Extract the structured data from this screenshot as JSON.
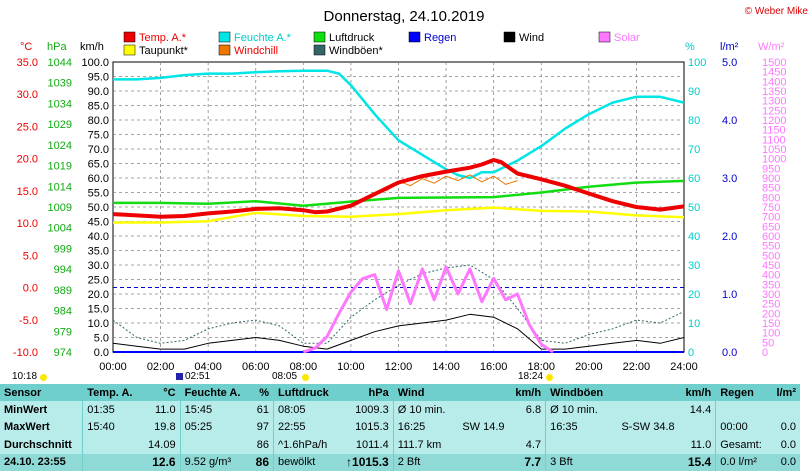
{
  "title": "Donnerstag, 24.10.2019",
  "copyright": "© Weber Mike",
  "legend": [
    {
      "label": "Temp. A.*",
      "color": "#ee0000"
    },
    {
      "label": "Feuchte A.*",
      "color": "#00e5e5"
    },
    {
      "label": "Luftdruck",
      "color": "#11dd11"
    },
    {
      "label": "Regen",
      "color": "#0000ff"
    },
    {
      "label": "Wind",
      "color": "#000000"
    },
    {
      "label": "Solar",
      "color": "#ff77ff"
    },
    {
      "label": "Taupunkt*",
      "color": "#ffff00"
    },
    {
      "label": "Windchill",
      "color": "#ee7700"
    },
    {
      "label": "Windböen*",
      "color": "#336666"
    }
  ],
  "axis_units": {
    "temp": "°C",
    "pressure": "hPa",
    "wind": "km/h",
    "humidity": "%",
    "rain": "l/m²",
    "solar": "W/m²"
  },
  "sun": {
    "sunrise_label": "08:05",
    "sunset_label": "18:24",
    "moonrise": "02:51",
    "moonset": "10:18"
  },
  "chart_data": {
    "type": "line",
    "title": "Donnerstag, 24.10.2019",
    "x_label": "",
    "x_ticks": [
      "00:00",
      "02:00",
      "04:00",
      "06:00",
      "08:00",
      "10:00",
      "12:00",
      "14:00",
      "16:00",
      "18:00",
      "20:00",
      "22:00",
      "24:00"
    ],
    "xlim": [
      0,
      24
    ],
    "axes": {
      "temp_c": {
        "ticks": [
          "35.0",
          "30.0",
          "25.0",
          "20.0",
          "15.0",
          "10.0",
          "5.0",
          "0.0",
          "-5.0",
          "-10.0"
        ],
        "range": [
          -10,
          35
        ]
      },
      "pressure_hpa": {
        "ticks": [
          "1044",
          "1039",
          "1034",
          "1029",
          "1024",
          "1019",
          "1014",
          "1009",
          "1004",
          "999",
          "994",
          "989",
          "984",
          "979",
          "974"
        ],
        "range": [
          974,
          1044
        ]
      },
      "wind_kmh": {
        "ticks": [
          "100.0",
          "95.0",
          "90.0",
          "85.0",
          "80.0",
          "75.0",
          "70.0",
          "65.0",
          "60.0",
          "55.0",
          "50.0",
          "45.0",
          "40.0",
          "35.0",
          "30.0",
          "25.0",
          "20.0",
          "15.0",
          "10.0",
          "5.0",
          "0.0"
        ],
        "range": [
          0,
          100
        ]
      },
      "humidity_pct": {
        "ticks": [
          "100",
          "90",
          "80",
          "70",
          "60",
          "50",
          "40",
          "30",
          "20",
          "10",
          "0"
        ],
        "range": [
          0,
          100
        ]
      },
      "rain_lm2": {
        "ticks": [
          "5.0",
          "4.0",
          "3.0",
          "2.0",
          "1.0",
          "0.0"
        ],
        "range": [
          0,
          5
        ]
      },
      "solar_wm2": {
        "ticks": [
          "1500",
          "1450",
          "1400",
          "1350",
          "1300",
          "1250",
          "1200",
          "1150",
          "1100",
          "1050",
          "1000",
          "950",
          "900",
          "850",
          "800",
          "750",
          "700",
          "650",
          "600",
          "550",
          "500",
          "450",
          "400",
          "350",
          "300",
          "250",
          "200",
          "150",
          "100",
          "50",
          "0"
        ],
        "range": [
          0,
          1500
        ]
      }
    },
    "series": [
      {
        "name": "Temp. A.*",
        "axis": "temp_c",
        "color": "#ee0000",
        "x": [
          0,
          1,
          2,
          3,
          4,
          5,
          6,
          7,
          8,
          8.5,
          9,
          10,
          11,
          12,
          13,
          14,
          15,
          15.5,
          16,
          16.3,
          17,
          18,
          19,
          20,
          21,
          22,
          23,
          24
        ],
        "y": [
          11.4,
          11.2,
          11.0,
          11.1,
          11.5,
          11.8,
          12.2,
          12.3,
          12.0,
          11.7,
          11.8,
          12.7,
          14.5,
          16.3,
          17.3,
          18.0,
          18.6,
          19.1,
          19.8,
          19.5,
          17.7,
          16.8,
          15.8,
          14.6,
          13.4,
          12.5,
          12.1,
          12.6
        ]
      },
      {
        "name": "Feuchte A.*",
        "axis": "humidity_pct",
        "color": "#00e5e5",
        "x": [
          0,
          1,
          2,
          3,
          4,
          5,
          6,
          7,
          8,
          9,
          9.5,
          10,
          11,
          12,
          13,
          14,
          14.5,
          15,
          15.5,
          16,
          17,
          18,
          19,
          20,
          21,
          22,
          23,
          24
        ],
        "y": [
          94,
          94,
          94.5,
          95.5,
          96,
          96,
          96.5,
          96.8,
          97,
          97,
          96,
          92,
          82,
          73,
          68,
          63,
          61,
          60,
          62,
          62,
          66,
          71,
          77,
          82,
          86,
          88,
          88,
          86
        ]
      },
      {
        "name": "Luftdruck",
        "axis": "pressure_hpa",
        "color": "#11dd11",
        "x": [
          0,
          2,
          4,
          6,
          8,
          10,
          12,
          14,
          16,
          18,
          20,
          22,
          24
        ],
        "y": [
          1010.0,
          1010.0,
          1009.8,
          1010.4,
          1009.3,
          1010.3,
          1011.2,
          1011.3,
          1011.4,
          1012.5,
          1013.9,
          1014.9,
          1015.3
        ]
      },
      {
        "name": "Taupunkt*",
        "axis": "temp_c",
        "color": "#ffff00",
        "x": [
          0,
          2,
          4,
          6,
          8,
          10,
          12,
          14,
          16,
          18,
          20,
          22,
          24
        ],
        "y": [
          10.1,
          10.1,
          10.3,
          11.6,
          11.1,
          11.0,
          11.4,
          12.0,
          12.4,
          11.9,
          11.8,
          11.2,
          10.9
        ]
      },
      {
        "name": "Windchill",
        "axis": "temp_c",
        "color": "#ee7700",
        "x": [
          11.5,
          12,
          12.5,
          13,
          13.5,
          14,
          14.5,
          15,
          15.5,
          16,
          16.5,
          17
        ],
        "y": [
          15.0,
          16.5,
          15.8,
          16.9,
          16.2,
          17.3,
          16.6,
          17.5,
          16.4,
          17.3,
          16.0,
          16.6
        ]
      },
      {
        "name": "Wind",
        "axis": "wind_kmh",
        "color": "#000000",
        "x": [
          0,
          1,
          2,
          3,
          4,
          5,
          6,
          7,
          8,
          9,
          10,
          11,
          12,
          13,
          14,
          15,
          16,
          17,
          18,
          19,
          20,
          21,
          22,
          23,
          24
        ],
        "y": [
          3,
          2,
          1,
          1,
          3,
          4,
          5,
          4,
          2,
          1,
          4,
          7,
          9,
          10,
          11,
          13,
          12,
          8,
          1,
          1,
          2,
          3,
          4,
          3,
          5
        ]
      },
      {
        "name": "Windböen*",
        "axis": "wind_kmh",
        "color": "#336666",
        "x": [
          0,
          1,
          2,
          3,
          4,
          5,
          6,
          7,
          8,
          9,
          10,
          11,
          12,
          13,
          14,
          15,
          16,
          17,
          18,
          19,
          20,
          21,
          22,
          23,
          24
        ],
        "y": [
          11,
          5,
          3,
          4,
          8,
          10,
          11,
          9,
          3,
          3,
          12,
          18,
          23,
          27,
          29,
          30,
          25,
          15,
          4,
          3,
          6,
          8,
          11,
          10,
          14
        ]
      },
      {
        "name": "Solar",
        "axis": "solar_wm2",
        "color": "#ff77ff",
        "x": [
          8,
          8.5,
          9,
          9.5,
          10,
          10.5,
          11,
          11.5,
          12,
          12.5,
          13,
          13.5,
          14,
          14.5,
          15,
          15.5,
          16,
          16.5,
          17,
          17.5,
          18,
          18.5
        ],
        "y": [
          0,
          20,
          80,
          200,
          310,
          380,
          400,
          220,
          420,
          250,
          430,
          270,
          440,
          300,
          430,
          260,
          380,
          270,
          300,
          140,
          40,
          0
        ]
      },
      {
        "name": "Regen",
        "axis": "rain_lm2",
        "color": "#0000ff",
        "x": [
          0,
          24
        ],
        "y": [
          0,
          0
        ]
      }
    ]
  },
  "stats": {
    "headers": [
      "Sensor",
      "Temp. A.",
      "°C",
      "Feuchte A.",
      "%",
      "Luftdruck",
      "hPa",
      "Wind",
      "km/h",
      "Windböen",
      "km/h",
      "Regen",
      "l/m²"
    ],
    "rows": [
      {
        "label": "MinWert",
        "cells": [
          "01:35",
          "11.0",
          "15:45",
          "61",
          "08:05",
          "1009.3",
          "Ø 10 min.",
          "",
          "6.8",
          "Ø 10 min.",
          "",
          "14.4",
          "",
          ""
        ]
      },
      {
        "label": "MaxWert",
        "cells": [
          "15:40",
          "19.8",
          "05:25",
          "97",
          "22:55",
          "1015.3",
          "16:25",
          "SW 14.9",
          "",
          "16:35",
          "S-SW 34.8",
          "",
          "00:00",
          "0.0"
        ]
      },
      {
        "label": "Durchschnitt",
        "cells": [
          "",
          "14.09",
          "",
          "86",
          "^1.6hPa/h",
          "1011.4",
          "111.7 km",
          "",
          "4.7",
          "",
          "",
          "11.0",
          "Gesamt:",
          "0.0"
        ]
      }
    ],
    "last": {
      "label": "24.10. 23:55",
      "cells": [
        "",
        "12.6",
        "9.52 g/m³",
        "86",
        "bewölkt",
        "↑1015.3",
        "2 Bft",
        "",
        "7.7",
        "3 Bft",
        "",
        "15.4",
        "0.0 l/m²",
        "0.0"
      ]
    }
  }
}
